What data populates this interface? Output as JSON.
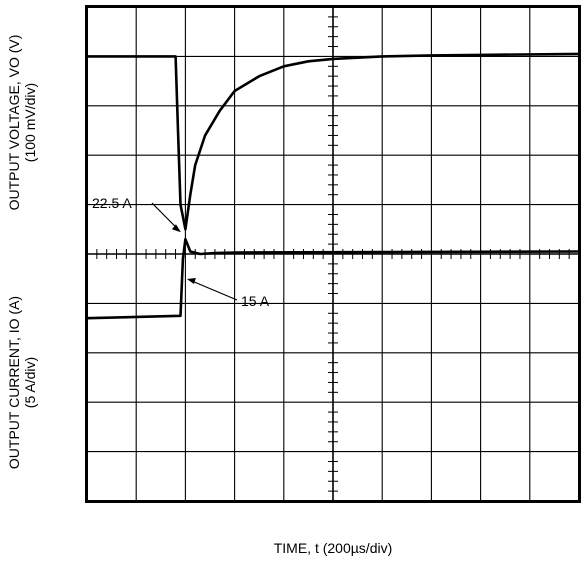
{
  "chart_data": {
    "type": "line",
    "title": "",
    "xlabel": "TIME, t (200µs/div)",
    "ylabels": [
      {
        "line1": "OUTPUT VOLTAGE,  VO (V)",
        "line2": "(100 mV/div)"
      },
      {
        "line1": "OUTPUT CURRENT, IO (A)",
        "line2": "(5 A/div)"
      }
    ],
    "grid": true,
    "divisions": {
      "x": 10,
      "y": 10
    },
    "x_units": "div",
    "y_units": "div",
    "xlim": [
      0,
      10
    ],
    "ylim": [
      0,
      10
    ],
    "series": [
      {
        "trace": "output-voltage",
        "x": [
          0,
          1.8,
          1.85,
          1.9,
          2.0,
          2.1,
          2.2,
          2.4,
          2.7,
          3.0,
          3.5,
          4.0,
          4.5,
          5.0,
          6.0,
          7.0,
          8.0,
          10.0
        ],
        "y": [
          9.0,
          9.0,
          7.5,
          6.0,
          5.5,
          6.2,
          6.8,
          7.4,
          7.9,
          8.3,
          8.6,
          8.8,
          8.9,
          8.95,
          9.0,
          9.02,
          9.03,
          9.05
        ]
      },
      {
        "trace": "output-current",
        "x": [
          0,
          1.9,
          1.95,
          2.0,
          2.1,
          2.3,
          2.6,
          3.0,
          10.0
        ],
        "y": [
          3.7,
          3.75,
          4.9,
          5.3,
          5.05,
          5.0,
          5.02,
          5.03,
          5.05
        ]
      }
    ],
    "annotations": [
      {
        "text": "22.5 A",
        "x": 1.95,
        "y": 5.4
      },
      {
        "text": "15 A",
        "x": 1.97,
        "y": 4.45
      }
    ]
  }
}
